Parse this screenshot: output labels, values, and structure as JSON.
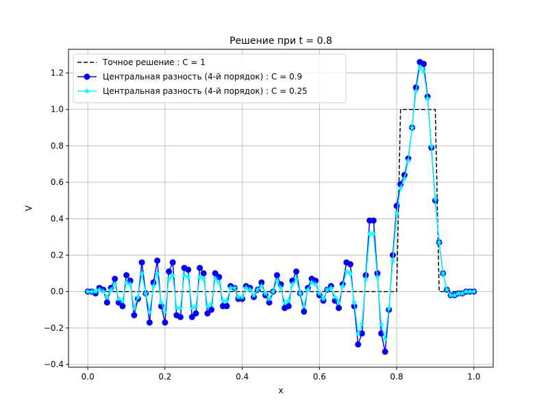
{
  "chart_data": {
    "type": "line",
    "title": "Решение при t = 0.8",
    "xlabel": "x",
    "ylabel": "V",
    "xlim": [
      -0.05,
      1.05
    ],
    "ylim": [
      -0.415,
      1.33
    ],
    "grid": true,
    "legend_position": "upper-left",
    "x_ticks": [
      0.0,
      0.2,
      0.4,
      0.6,
      0.8,
      1.0
    ],
    "x_tick_labels": [
      "0.0",
      "0.2",
      "0.4",
      "0.6",
      "0.8",
      "1.0"
    ],
    "y_ticks": [
      -0.4,
      -0.2,
      0.0,
      0.2,
      0.4,
      0.6,
      0.8,
      1.0,
      1.2
    ],
    "y_tick_labels": [
      "−0.4",
      "−0.2",
      "0.0",
      "0.2",
      "0.4",
      "0.6",
      "0.8",
      "1.0",
      "1.2"
    ],
    "series": [
      {
        "name": "Точное решение : C = 1",
        "color": "#000000",
        "style": "dashed",
        "marker": "none",
        "x": [
          0.0,
          0.8,
          0.81,
          0.9,
          0.91,
          1.0
        ],
        "y": [
          0.0,
          0.0,
          1.0,
          1.0,
          0.0,
          0.0
        ]
      },
      {
        "name": "Центральная разность (4-й порядок) : C = 0.9",
        "color": "#0000ff",
        "style": "solid",
        "marker": "circle",
        "x": [
          0.0,
          0.01,
          0.02,
          0.03,
          0.04,
          0.05,
          0.06,
          0.07,
          0.08,
          0.09,
          0.1,
          0.11,
          0.12,
          0.13,
          0.14,
          0.15,
          0.16,
          0.17,
          0.18,
          0.19,
          0.2,
          0.21,
          0.22,
          0.23,
          0.24,
          0.25,
          0.26,
          0.27,
          0.28,
          0.29,
          0.3,
          0.31,
          0.32,
          0.33,
          0.34,
          0.35,
          0.36,
          0.37,
          0.38,
          0.39,
          0.4,
          0.41,
          0.42,
          0.43,
          0.44,
          0.45,
          0.46,
          0.47,
          0.48,
          0.49,
          0.5,
          0.51,
          0.52,
          0.53,
          0.54,
          0.55,
          0.56,
          0.57,
          0.58,
          0.59,
          0.6,
          0.61,
          0.62,
          0.63,
          0.64,
          0.65,
          0.66,
          0.67,
          0.68,
          0.69,
          0.7,
          0.71,
          0.72,
          0.73,
          0.74,
          0.75,
          0.76,
          0.77,
          0.78,
          0.79,
          0.8,
          0.81,
          0.82,
          0.83,
          0.84,
          0.85,
          0.86,
          0.87,
          0.88,
          0.89,
          0.9,
          0.91,
          0.92,
          0.93,
          0.94,
          0.95,
          0.96,
          0.97,
          0.98,
          0.99,
          1.0
        ],
        "y": [
          0.0,
          0.0,
          -0.01,
          0.02,
          0.01,
          -0.06,
          0.02,
          0.07,
          -0.06,
          -0.08,
          0.09,
          0.06,
          -0.13,
          -0.04,
          0.16,
          -0.01,
          -0.17,
          0.05,
          0.17,
          -0.08,
          -0.17,
          0.11,
          0.16,
          -0.13,
          -0.14,
          0.13,
          0.12,
          -0.14,
          -0.12,
          0.13,
          0.1,
          -0.12,
          -0.1,
          0.1,
          0.08,
          -0.08,
          -0.08,
          0.03,
          0.02,
          -0.04,
          -0.04,
          0.03,
          0.02,
          -0.03,
          0.01,
          0.05,
          -0.02,
          -0.06,
          0.0,
          0.09,
          0.04,
          -0.09,
          -0.08,
          0.06,
          0.11,
          -0.01,
          -0.11,
          0.02,
          0.07,
          0.06,
          -0.02,
          -0.05,
          0.01,
          0.03,
          -0.05,
          -0.09,
          0.04,
          0.16,
          0.15,
          -0.08,
          -0.29,
          -0.23,
          0.09,
          0.39,
          0.39,
          0.1,
          -0.23,
          -0.33,
          -0.1,
          0.2,
          0.47,
          0.59,
          0.64,
          0.73,
          0.9,
          1.12,
          1.26,
          1.25,
          1.07,
          0.79,
          0.5,
          0.27,
          0.1,
          0.01,
          -0.02,
          -0.02,
          -0.01,
          -0.01,
          0.0,
          0.0,
          0.0
        ]
      },
      {
        "name": "Центральная разность (4-й порядок) : C = 0.25",
        "color": "#00ffff",
        "style": "solid",
        "marker": "star",
        "x": [
          0.0,
          0.01,
          0.02,
          0.03,
          0.04,
          0.05,
          0.06,
          0.07,
          0.08,
          0.09,
          0.1,
          0.11,
          0.12,
          0.13,
          0.14,
          0.15,
          0.16,
          0.17,
          0.18,
          0.19,
          0.2,
          0.21,
          0.22,
          0.23,
          0.24,
          0.25,
          0.26,
          0.27,
          0.28,
          0.29,
          0.3,
          0.31,
          0.32,
          0.33,
          0.34,
          0.35,
          0.36,
          0.37,
          0.38,
          0.39,
          0.4,
          0.41,
          0.42,
          0.43,
          0.44,
          0.45,
          0.46,
          0.47,
          0.48,
          0.49,
          0.5,
          0.51,
          0.52,
          0.53,
          0.54,
          0.55,
          0.56,
          0.57,
          0.58,
          0.59,
          0.6,
          0.61,
          0.62,
          0.63,
          0.64,
          0.65,
          0.66,
          0.67,
          0.68,
          0.69,
          0.7,
          0.71,
          0.72,
          0.73,
          0.74,
          0.75,
          0.76,
          0.77,
          0.78,
          0.79,
          0.8,
          0.81,
          0.82,
          0.83,
          0.84,
          0.85,
          0.86,
          0.87,
          0.88,
          0.89,
          0.9,
          0.91,
          0.92,
          0.93,
          0.94,
          0.95,
          0.96,
          0.97,
          0.98,
          0.99,
          1.0
        ],
        "y": [
          0.0,
          0.0,
          0.0,
          0.01,
          0.0,
          -0.03,
          0.01,
          0.04,
          -0.04,
          -0.05,
          0.05,
          0.04,
          -0.09,
          -0.03,
          0.1,
          -0.01,
          -0.11,
          0.03,
          0.1,
          -0.06,
          -0.11,
          0.07,
          0.09,
          -0.09,
          -0.09,
          0.09,
          0.08,
          -0.09,
          -0.08,
          0.08,
          0.07,
          -0.08,
          -0.07,
          0.07,
          0.05,
          -0.05,
          -0.05,
          0.02,
          0.02,
          -0.03,
          -0.03,
          0.02,
          0.01,
          -0.02,
          0.01,
          0.03,
          -0.01,
          -0.04,
          0.0,
          0.06,
          0.02,
          -0.06,
          -0.05,
          0.04,
          0.07,
          -0.01,
          -0.08,
          0.01,
          0.05,
          0.04,
          -0.01,
          -0.04,
          0.01,
          0.02,
          -0.03,
          -0.06,
          0.03,
          0.11,
          0.1,
          -0.06,
          -0.23,
          -0.18,
          0.07,
          0.32,
          0.32,
          0.08,
          -0.18,
          -0.26,
          -0.09,
          0.17,
          0.43,
          0.57,
          0.62,
          0.72,
          0.9,
          1.1,
          1.23,
          1.21,
          1.06,
          0.8,
          0.51,
          0.27,
          0.1,
          0.01,
          -0.02,
          -0.02,
          -0.01,
          -0.01,
          0.0,
          0.0,
          0.0
        ]
      }
    ]
  }
}
